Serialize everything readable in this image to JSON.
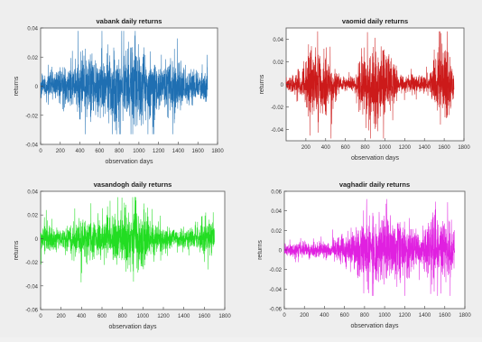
{
  "chart_data": [
    {
      "type": "line",
      "title": "vabank daily returns",
      "xlabel": "observation days",
      "ylabel": "returns",
      "xlim": [
        0,
        1800
      ],
      "ylim": [
        -0.04,
        0.04
      ],
      "xticks": [
        "0",
        "200",
        "400",
        "600",
        "800",
        "1000",
        "1200",
        "1400",
        "1600",
        "1800"
      ],
      "yticks": [
        "-0.04",
        "-0.02",
        "0",
        "0.02",
        "0.04"
      ],
      "grid": false,
      "series": [
        {
          "color": "#1f6fb2",
          "n_points": 1700,
          "amplitude_envelope": [
            [
              0,
              0.008
            ],
            [
              100,
              0.01
            ],
            [
              300,
              0.016
            ],
            [
              500,
              0.022
            ],
            [
              700,
              0.024
            ],
            [
              850,
              0.03
            ],
            [
              950,
              0.032
            ],
            [
              1050,
              0.026
            ],
            [
              1200,
              0.018
            ],
            [
              1350,
              0.022
            ],
            [
              1500,
              0.016
            ],
            [
              1600,
              0.01
            ],
            [
              1700,
              0.012
            ]
          ],
          "range": [
            -0.033,
            0.038
          ]
        }
      ]
    },
    {
      "type": "line",
      "title": "vaomid daily returns",
      "xlabel": "observation days",
      "ylabel": "returns",
      "xlim": [
        0,
        1800
      ],
      "ylim": [
        -0.05,
        0.05
      ],
      "xticks": [
        "200",
        "400",
        "600",
        "800",
        "1000",
        "1200",
        "1400",
        "1600",
        "1800"
      ],
      "yticks": [
        "-0.04",
        "-0.02",
        "0",
        "0.02",
        "0.04"
      ],
      "grid": false,
      "series": [
        {
          "color": "#cc1a1a",
          "n_points": 1700,
          "amplitude_envelope": [
            [
              0,
              0.006
            ],
            [
              150,
              0.01
            ],
            [
              250,
              0.035
            ],
            [
              400,
              0.03
            ],
            [
              550,
              0.006
            ],
            [
              700,
              0.008
            ],
            [
              800,
              0.03
            ],
            [
              950,
              0.04
            ],
            [
              1050,
              0.03
            ],
            [
              1150,
              0.006
            ],
            [
              1350,
              0.01
            ],
            [
              1450,
              0.006
            ],
            [
              1550,
              0.04
            ],
            [
              1650,
              0.035
            ],
            [
              1700,
              0.01
            ]
          ],
          "range": [
            -0.048,
            0.047
          ]
        }
      ]
    },
    {
      "type": "line",
      "title": "vasandogh daily returns",
      "xlabel": "observation days",
      "ylabel": "returns",
      "xlim": [
        0,
        1800
      ],
      "ylim": [
        -0.06,
        0.04
      ],
      "xticks": [
        "0",
        "200",
        "400",
        "600",
        "800",
        "1000",
        "1200",
        "1400",
        "1600",
        "1800"
      ],
      "yticks": [
        "-0.06",
        "-0.04",
        "-0.02",
        "0",
        "0.02",
        "0.04"
      ],
      "grid": false,
      "series": [
        {
          "color": "#22dd22",
          "n_points": 1700,
          "amplitude_envelope": [
            [
              0,
              0.012
            ],
            [
              200,
              0.012
            ],
            [
              400,
              0.018
            ],
            [
              600,
              0.016
            ],
            [
              800,
              0.025
            ],
            [
              950,
              0.03
            ],
            [
              1100,
              0.016
            ],
            [
              1300,
              0.008
            ],
            [
              1500,
              0.01
            ],
            [
              1650,
              0.02
            ],
            [
              1700,
              0.012
            ]
          ],
          "range": [
            -0.038,
            0.035
          ]
        }
      ]
    },
    {
      "type": "line",
      "title": "vaghadir daily returns",
      "xlabel": "observation days",
      "ylabel": "returns",
      "xlim": [
        0,
        1800
      ],
      "ylim": [
        -0.06,
        0.06
      ],
      "xticks": [
        "0",
        "200",
        "400",
        "600",
        "800",
        "1000",
        "1200",
        "1400",
        "1600",
        "1800"
      ],
      "yticks": [
        "-0.06",
        "-0.04",
        "-0.02",
        "0",
        "0.02",
        "0.04",
        "0.06"
      ],
      "grid": false,
      "series": [
        {
          "color": "#e020e0",
          "n_points": 1700,
          "amplitude_envelope": [
            [
              0,
              0.006
            ],
            [
              300,
              0.01
            ],
            [
              500,
              0.012
            ],
            [
              650,
              0.02
            ],
            [
              800,
              0.035
            ],
            [
              1000,
              0.038
            ],
            [
              1200,
              0.03
            ],
            [
              1350,
              0.018
            ],
            [
              1500,
              0.04
            ],
            [
              1650,
              0.03
            ],
            [
              1700,
              0.02
            ]
          ],
          "range": [
            -0.047,
            0.052
          ]
        }
      ]
    }
  ]
}
